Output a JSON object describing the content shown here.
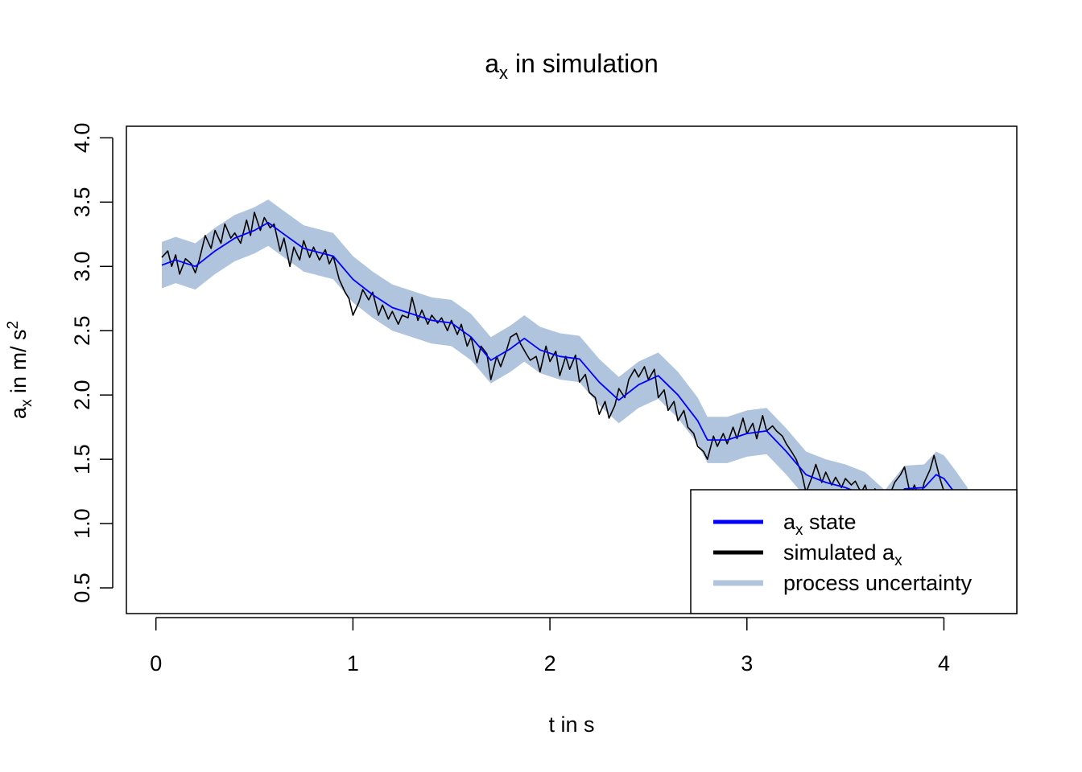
{
  "chart_data": {
    "type": "line",
    "title": {
      "main": "a",
      "sub": "x",
      "rest": " in simulation"
    },
    "xlabel": "t in s",
    "ylabel": {
      "main": "a",
      "sub": "x",
      "mid": " in m/ s",
      "sup": "2"
    },
    "xlim": [
      -0.15,
      4.37
    ],
    "ylim": [
      0.3,
      4.09
    ],
    "x_ticks": [
      0,
      1,
      2,
      3,
      4
    ],
    "x_tick_labels": [
      "0",
      "1",
      "2",
      "3",
      "4"
    ],
    "y_ticks": [
      0.5,
      1.0,
      1.5,
      2.0,
      2.5,
      3.0,
      3.5,
      4.0
    ],
    "y_tick_labels": [
      "0.5",
      "1.0",
      "1.5",
      "2.0",
      "2.5",
      "3.0",
      "3.5",
      "4.0"
    ],
    "grid": false,
    "legend_position": "bottom-right",
    "band_halfwidth": 0.18,
    "state": {
      "x": [
        0.03,
        0.1,
        0.2,
        0.3,
        0.4,
        0.5,
        0.57,
        0.65,
        0.75,
        0.9,
        1.0,
        1.1,
        1.2,
        1.3,
        1.4,
        1.5,
        1.6,
        1.7,
        1.8,
        1.87,
        1.95,
        2.05,
        2.15,
        2.25,
        2.35,
        2.45,
        2.55,
        2.65,
        2.75,
        2.8,
        2.9,
        3.0,
        3.1,
        3.2,
        3.3,
        3.4,
        3.5,
        3.6,
        3.7,
        3.8,
        3.9,
        3.96,
        4.0,
        4.05,
        4.12
      ],
      "y": [
        3.01,
        3.05,
        3.0,
        3.12,
        3.22,
        3.28,
        3.34,
        3.25,
        3.14,
        3.08,
        2.9,
        2.78,
        2.68,
        2.63,
        2.58,
        2.56,
        2.45,
        2.27,
        2.36,
        2.44,
        2.35,
        2.3,
        2.28,
        2.1,
        1.96,
        2.08,
        2.15,
        2.0,
        1.8,
        1.65,
        1.65,
        1.7,
        1.72,
        1.56,
        1.38,
        1.32,
        1.28,
        1.22,
        1.08,
        1.27,
        1.28,
        1.38,
        1.35,
        1.25,
        1.1
      ]
    },
    "simulated": {
      "x": [
        0.03,
        0.06,
        0.08,
        0.1,
        0.12,
        0.15,
        0.18,
        0.2,
        0.22,
        0.25,
        0.28,
        0.3,
        0.33,
        0.35,
        0.38,
        0.4,
        0.43,
        0.46,
        0.48,
        0.5,
        0.53,
        0.55,
        0.58,
        0.6,
        0.63,
        0.65,
        0.68,
        0.7,
        0.73,
        0.75,
        0.78,
        0.8,
        0.83,
        0.86,
        0.88,
        0.9,
        0.93,
        0.96,
        0.98,
        1.0,
        1.03,
        1.05,
        1.08,
        1.1,
        1.13,
        1.15,
        1.18,
        1.2,
        1.23,
        1.25,
        1.28,
        1.3,
        1.33,
        1.35,
        1.38,
        1.4,
        1.43,
        1.45,
        1.48,
        1.5,
        1.53,
        1.55,
        1.58,
        1.6,
        1.63,
        1.65,
        1.68,
        1.7,
        1.73,
        1.75,
        1.78,
        1.8,
        1.83,
        1.85,
        1.88,
        1.9,
        1.93,
        1.95,
        1.98,
        2.0,
        2.03,
        2.05,
        2.08,
        2.1,
        2.13,
        2.15,
        2.18,
        2.2,
        2.23,
        2.25,
        2.28,
        2.3,
        2.33,
        2.35,
        2.38,
        2.4,
        2.43,
        2.45,
        2.48,
        2.5,
        2.53,
        2.55,
        2.58,
        2.6,
        2.63,
        2.65,
        2.68,
        2.7,
        2.73,
        2.75,
        2.78,
        2.8,
        2.83,
        2.85,
        2.88,
        2.9,
        2.93,
        2.95,
        2.98,
        3.0,
        3.03,
        3.05,
        3.08,
        3.1,
        3.13,
        3.15,
        3.18,
        3.2,
        3.23,
        3.25,
        3.28,
        3.3,
        3.33,
        3.35,
        3.38,
        3.4,
        3.43,
        3.45,
        3.48,
        3.5,
        3.53,
        3.55,
        3.58,
        3.6,
        3.63,
        3.65,
        3.68,
        3.7,
        3.73,
        3.75,
        3.78,
        3.8,
        3.83,
        3.85,
        3.88,
        3.9,
        3.93,
        3.95,
        3.98,
        4.0,
        4.03,
        4.06,
        4.1
      ],
      "y": [
        3.07,
        3.12,
        3.0,
        3.09,
        2.94,
        3.06,
        3.02,
        2.95,
        3.05,
        3.24,
        3.14,
        3.28,
        3.18,
        3.33,
        3.22,
        3.26,
        3.18,
        3.36,
        3.24,
        3.42,
        3.28,
        3.38,
        3.3,
        3.33,
        3.12,
        3.22,
        3.0,
        3.15,
        3.05,
        3.2,
        3.07,
        3.15,
        3.05,
        3.13,
        3.02,
        3.08,
        2.9,
        2.8,
        2.75,
        2.62,
        2.72,
        2.82,
        2.74,
        2.8,
        2.62,
        2.7,
        2.59,
        2.65,
        2.55,
        2.62,
        2.6,
        2.76,
        2.58,
        2.66,
        2.55,
        2.62,
        2.56,
        2.6,
        2.5,
        2.58,
        2.47,
        2.55,
        2.38,
        2.45,
        2.25,
        2.38,
        2.32,
        2.12,
        2.3,
        2.22,
        2.35,
        2.45,
        2.48,
        2.4,
        2.32,
        2.27,
        2.3,
        2.18,
        2.38,
        2.26,
        2.34,
        2.15,
        2.3,
        2.2,
        2.31,
        2.1,
        2.16,
        2.02,
        1.98,
        1.85,
        1.95,
        1.82,
        1.92,
        2.05,
        1.98,
        2.12,
        2.2,
        2.14,
        2.22,
        2.12,
        2.2,
        1.98,
        2.04,
        1.88,
        1.95,
        1.8,
        1.88,
        1.75,
        1.7,
        1.6,
        1.56,
        1.5,
        1.68,
        1.6,
        1.7,
        1.62,
        1.75,
        1.66,
        1.82,
        1.7,
        1.78,
        1.66,
        1.84,
        1.72,
        1.76,
        1.72,
        1.68,
        1.62,
        1.55,
        1.5,
        1.38,
        1.24,
        1.36,
        1.46,
        1.32,
        1.4,
        1.3,
        1.36,
        1.28,
        1.35,
        1.3,
        1.33,
        1.24,
        1.3,
        1.16,
        1.27,
        1.2,
        1.12,
        1.24,
        1.32,
        1.38,
        1.44,
        1.22,
        1.3,
        1.18,
        1.32,
        1.42,
        1.53,
        1.35,
        1.25,
        1.2,
        1.18,
        1.12
      ]
    },
    "legend": [
      {
        "main": "a",
        "sub": "x",
        "rest": " state",
        "color": "#0000ff"
      },
      {
        "main": "simulated a",
        "sub": "x",
        "rest": "",
        "color": "#000000"
      },
      {
        "main": "process uncertainty",
        "sub": "",
        "rest": "",
        "color": "#b0c4de"
      }
    ],
    "colors": {
      "state": "#0000ff",
      "simulated": "#000000",
      "band": "#b0c4de"
    }
  }
}
